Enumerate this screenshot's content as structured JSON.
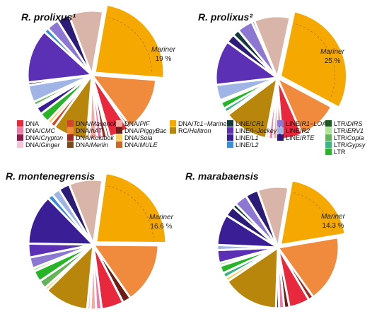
{
  "legend": [
    {
      "key": "dna",
      "prefix": "DNA",
      "suffix": "",
      "color": "#e8283c"
    },
    {
      "key": "dna_cmc",
      "prefix": "DNA/",
      "suffix": "CMC",
      "color": "#f07aa6"
    },
    {
      "key": "dna_crypton",
      "prefix": "DNA/",
      "suffix": "Crypton",
      "color": "#8c1a4a"
    },
    {
      "key": "dna_ginger",
      "prefix": "DNA/",
      "suffix": "Ginger",
      "color": "#f6c4d8"
    },
    {
      "key": "dna_maverick",
      "prefix": "DNA/",
      "suffix": "Maverick",
      "color": "#d2452c"
    },
    {
      "key": "dna_hat",
      "prefix": "DNA/",
      "suffix": "hAT",
      "color": "#f08a3c"
    },
    {
      "key": "dna_kolobok",
      "prefix": "DNA/",
      "suffix": "Kolobok",
      "color": "#a0281e"
    },
    {
      "key": "dna_merlin",
      "prefix": "DNA/",
      "suffix": "Merlin",
      "color": "#7a4a1c"
    },
    {
      "key": "dna_pif",
      "prefix": "DNA/",
      "suffix": "PIF",
      "color": "#f4a8a0"
    },
    {
      "key": "dna_piggybac",
      "prefix": "DNA/",
      "suffix": "PiggyBac",
      "color": "#6e1e14"
    },
    {
      "key": "dna_sola",
      "prefix": "DNA/",
      "suffix": "Sola",
      "color": "#f6d060"
    },
    {
      "key": "dna_mule",
      "prefix": "DNA/",
      "suffix": "MULE",
      "color": "#c8682c"
    },
    {
      "key": "dna_tc1",
      "prefix": "DNA/",
      "suffix": "Tc1−Mariner",
      "color": "#f5a800"
    },
    {
      "key": "rc_helitron",
      "prefix": "RC/",
      "suffix": "Helitron",
      "color": "#b8860b"
    },
    {
      "key": "line_cr1",
      "prefix": "LINE/",
      "suffix": "CR1",
      "color": "#133a3a"
    },
    {
      "key": "line_ijockey",
      "prefix": "LINE/",
      "suffix": "I−Jockey",
      "color": "#5b30b4"
    },
    {
      "key": "line_l1",
      "prefix": "LINE/",
      "suffix": "L1",
      "color": "#3a1e96"
    },
    {
      "key": "line_l2",
      "prefix": "LINE/",
      "suffix": "L2",
      "color": "#3c8cdc"
    },
    {
      "key": "line_r1loa",
      "prefix": "LINE/",
      "suffix": "R1−LOA",
      "color": "#8c78d2"
    },
    {
      "key": "line_r2",
      "prefix": "LINE/",
      "suffix": "R2",
      "color": "#a0b4e6"
    },
    {
      "key": "line_rte",
      "prefix": "LINE/",
      "suffix": "RTE",
      "color": "#2c1c78"
    },
    {
      "key": "ltr_dirs",
      "prefix": "LTR/",
      "suffix": "DIRS",
      "color": "#1e5a1e"
    },
    {
      "key": "ltr_erv1",
      "prefix": "LTR/",
      "suffix": "ERV1",
      "color": "#aae696"
    },
    {
      "key": "ltr_copia",
      "prefix": "LTR/",
      "suffix": "Copia",
      "color": "#64b45a"
    },
    {
      "key": "ltr_gypsy",
      "prefix": "LTR/",
      "suffix": "Gypsy",
      "color": "#3cb484"
    },
    {
      "key": "ltr",
      "prefix": "LTR",
      "suffix": "",
      "color": "#28b428"
    },
    {
      "key": "tan",
      "prefix": "",
      "suffix": "",
      "color": "#d9b4a8"
    }
  ],
  "chart_data": [
    {
      "type": "pie",
      "title": "R. prolixus¹",
      "callout": {
        "label": "Mariner",
        "value": "19 %"
      },
      "slices": [
        {
          "key": "dna_tc1",
          "value": 19
        },
        {
          "key": "dna_hat",
          "value": 11
        },
        {
          "key": "dna_merlin",
          "value": 0.6
        },
        {
          "key": "dna",
          "value": 4
        },
        {
          "key": "dna_piggybac",
          "value": 0.6
        },
        {
          "key": "dna_kolobok",
          "value": 1
        },
        {
          "key": "dna_cmc",
          "value": 1
        },
        {
          "key": "dna_pif",
          "value": 1.5
        },
        {
          "key": "dna_mule",
          "value": 0.6
        },
        {
          "key": "rc_helitron",
          "value": 7
        },
        {
          "key": "dna_maverick",
          "value": 1
        },
        {
          "key": "dna_sola",
          "value": 0.8
        },
        {
          "key": "ltr",
          "value": 2
        },
        {
          "key": "line_l1",
          "value": 1.5
        },
        {
          "key": "ltr_erv1",
          "value": 0.5
        },
        {
          "key": "ltr_copia",
          "value": 0.8
        },
        {
          "key": "line_r2",
          "value": 3.5
        },
        {
          "key": "line_rte",
          "value": 0.6
        },
        {
          "key": "line_ijockey",
          "value": 11
        },
        {
          "key": "line_l2",
          "value": 1
        },
        {
          "key": "line_r1loa",
          "value": 2.5
        },
        {
          "key": "line_rte",
          "value": 2.5
        },
        {
          "key": "tan",
          "value": 7
        }
      ]
    },
    {
      "type": "pie",
      "title": "R. prolixus²",
      "callout": {
        "label": "Mariner",
        "value": "25 %"
      },
      "slices": [
        {
          "key": "dna_tc1",
          "value": 25
        },
        {
          "key": "dna_hat",
          "value": 9
        },
        {
          "key": "dna",
          "value": 4.5
        },
        {
          "key": "dna_kolobok",
          "value": 1
        },
        {
          "key": "dna_pif",
          "value": 1
        },
        {
          "key": "dna_cmc",
          "value": 1
        },
        {
          "key": "dna_ginger",
          "value": 0.6
        },
        {
          "key": "rc_helitron",
          "value": 10
        },
        {
          "key": "dna_sola",
          "value": 0.6
        },
        {
          "key": "ltr_gypsy",
          "value": 1
        },
        {
          "key": "ltr",
          "value": 1.5
        },
        {
          "key": "ltr_erv1",
          "value": 0.5
        },
        {
          "key": "line_r2",
          "value": 3.5
        },
        {
          "key": "line_ijockey",
          "value": 10
        },
        {
          "key": "line_rte",
          "value": 2
        },
        {
          "key": "line_cr1",
          "value": 1.5
        },
        {
          "key": "line_r1loa",
          "value": 3.5
        },
        {
          "key": "line_l2",
          "value": 0.6
        },
        {
          "key": "tan",
          "value": 8
        }
      ]
    },
    {
      "type": "pie",
      "title": "R. montenegrensis",
      "callout": {
        "label": "Mariner",
        "value": "16.6 %"
      },
      "slices": [
        {
          "key": "dna_tc1",
          "value": 16.6
        },
        {
          "key": "dna_hat",
          "value": 11
        },
        {
          "key": "dna_piggybac",
          "value": 1.5
        },
        {
          "key": "dna",
          "value": 4
        },
        {
          "key": "dna_cmc",
          "value": 1
        },
        {
          "key": "dna_pif",
          "value": 1
        },
        {
          "key": "dna_ginger",
          "value": 0.6
        },
        {
          "key": "rc_helitron",
          "value": 8
        },
        {
          "key": "dna_sola",
          "value": 0.6
        },
        {
          "key": "ltr_copia",
          "value": 1.5
        },
        {
          "key": "ltr",
          "value": 2
        },
        {
          "key": "ltr_erv1",
          "value": 0.6
        },
        {
          "key": "line_r1loa",
          "value": 2
        },
        {
          "key": "line_ijockey",
          "value": 2.5
        },
        {
          "key": "line_l1",
          "value": 9
        },
        {
          "key": "line_l2",
          "value": 1
        },
        {
          "key": "line_r2",
          "value": 1.5
        },
        {
          "key": "line_rte",
          "value": 2
        },
        {
          "key": "tan",
          "value": 6
        }
      ]
    },
    {
      "type": "pie",
      "title": "R. marabaensis",
      "callout": {
        "label": "Mariner",
        "value": "14.3 %"
      },
      "slices": [
        {
          "key": "dna_tc1",
          "value": 14.3
        },
        {
          "key": "dna_hat",
          "value": 13
        },
        {
          "key": "dna_kolobok",
          "value": 1
        },
        {
          "key": "dna",
          "value": 4
        },
        {
          "key": "dna_piggybac",
          "value": 1
        },
        {
          "key": "dna_cmc",
          "value": 1
        },
        {
          "key": "dna_crypton",
          "value": 0.6
        },
        {
          "key": "rc_helitron",
          "value": 11
        },
        {
          "key": "dna_sola",
          "value": 0.8
        },
        {
          "key": "ltr_gypsy",
          "value": 1
        },
        {
          "key": "ltr",
          "value": 1.5
        },
        {
          "key": "ltr_erv1",
          "value": 0.6
        },
        {
          "key": "line_ijockey",
          "value": 2.5
        },
        {
          "key": "line_r2",
          "value": 1
        },
        {
          "key": "line_l1",
          "value": 6
        },
        {
          "key": "line_rte",
          "value": 2
        },
        {
          "key": "line_cr1",
          "value": 0.8
        },
        {
          "key": "line_r1loa",
          "value": 2.5
        },
        {
          "key": "line_rte",
          "value": 2.5
        },
        {
          "key": "tan",
          "value": 6
        }
      ]
    }
  ]
}
